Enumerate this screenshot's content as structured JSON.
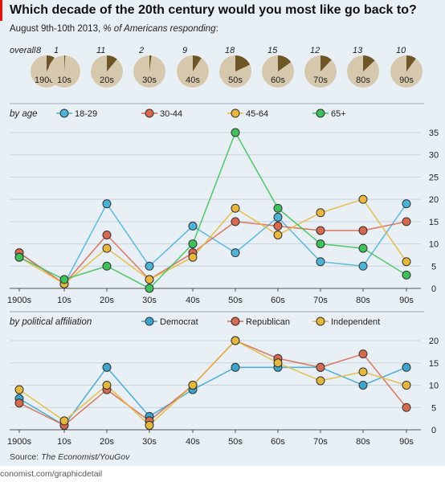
{
  "title": "Which decade of the 20th century would you most like go back to?",
  "subtitle_date": "August 9th-10th 2013,",
  "subtitle_measure": "% of Americans responding",
  "subtitle_end": ":",
  "source_prefix": "Source:",
  "source_name": "The Economist/YouGov",
  "footer": "conomist.com/graphicdetail",
  "colors": {
    "pie_bg": "#d6c8ad",
    "pie_fill": "#6e5528",
    "c18_29": "#4ab3d6",
    "c30_44": "#d9694e",
    "c45_64": "#e9b73b",
    "c65": "#3ec05a",
    "dem": "#3da5cc",
    "rep": "#d46a4f",
    "ind": "#e4b83d"
  },
  "chart_data": [
    {
      "type": "pie",
      "title": "overall",
      "categories": [
        "1900s",
        "10s",
        "20s",
        "30s",
        "40s",
        "50s",
        "60s",
        "70s",
        "80s",
        "90s"
      ],
      "values": [
        8,
        1,
        11,
        2,
        9,
        18,
        15,
        12,
        13,
        10
      ]
    },
    {
      "type": "line",
      "title": "by age",
      "categories": [
        "1900s",
        "10s",
        "20s",
        "30s",
        "40s",
        "50s",
        "60s",
        "70s",
        "80s",
        "90s"
      ],
      "ylim": [
        0,
        35
      ],
      "yticks": [
        0,
        5,
        10,
        15,
        20,
        25,
        30,
        35
      ],
      "series": [
        {
          "name": "18-29",
          "values": [
            8,
            1,
            19,
            5,
            14,
            8,
            16,
            6,
            5,
            19
          ]
        },
        {
          "name": "30-44",
          "values": [
            8,
            1,
            12,
            2,
            8,
            15,
            14,
            13,
            13,
            15
          ]
        },
        {
          "name": "45-64",
          "values": [
            7,
            1,
            9,
            2,
            7,
            18,
            12,
            17,
            20,
            6
          ]
        },
        {
          "name": "65+",
          "values": [
            7,
            2,
            5,
            0,
            10,
            35,
            18,
            10,
            9,
            3
          ]
        }
      ]
    },
    {
      "type": "line",
      "title": "by political affiliation",
      "categories": [
        "1900s",
        "10s",
        "20s",
        "30s",
        "40s",
        "50s",
        "60s",
        "70s",
        "80s",
        "90s"
      ],
      "ylim": [
        0,
        20
      ],
      "yticks": [
        0,
        5,
        10,
        15,
        20
      ],
      "series": [
        {
          "name": "Democrat",
          "values": [
            7,
            1,
            14,
            3,
            9,
            14,
            14,
            14,
            10,
            14
          ]
        },
        {
          "name": "Republican",
          "values": [
            6,
            1,
            9,
            2,
            10,
            20,
            16,
            14,
            17,
            5
          ]
        },
        {
          "name": "Independent",
          "values": [
            9,
            2,
            10,
            1,
            10,
            20,
            15,
            11,
            13,
            10
          ]
        }
      ]
    }
  ]
}
